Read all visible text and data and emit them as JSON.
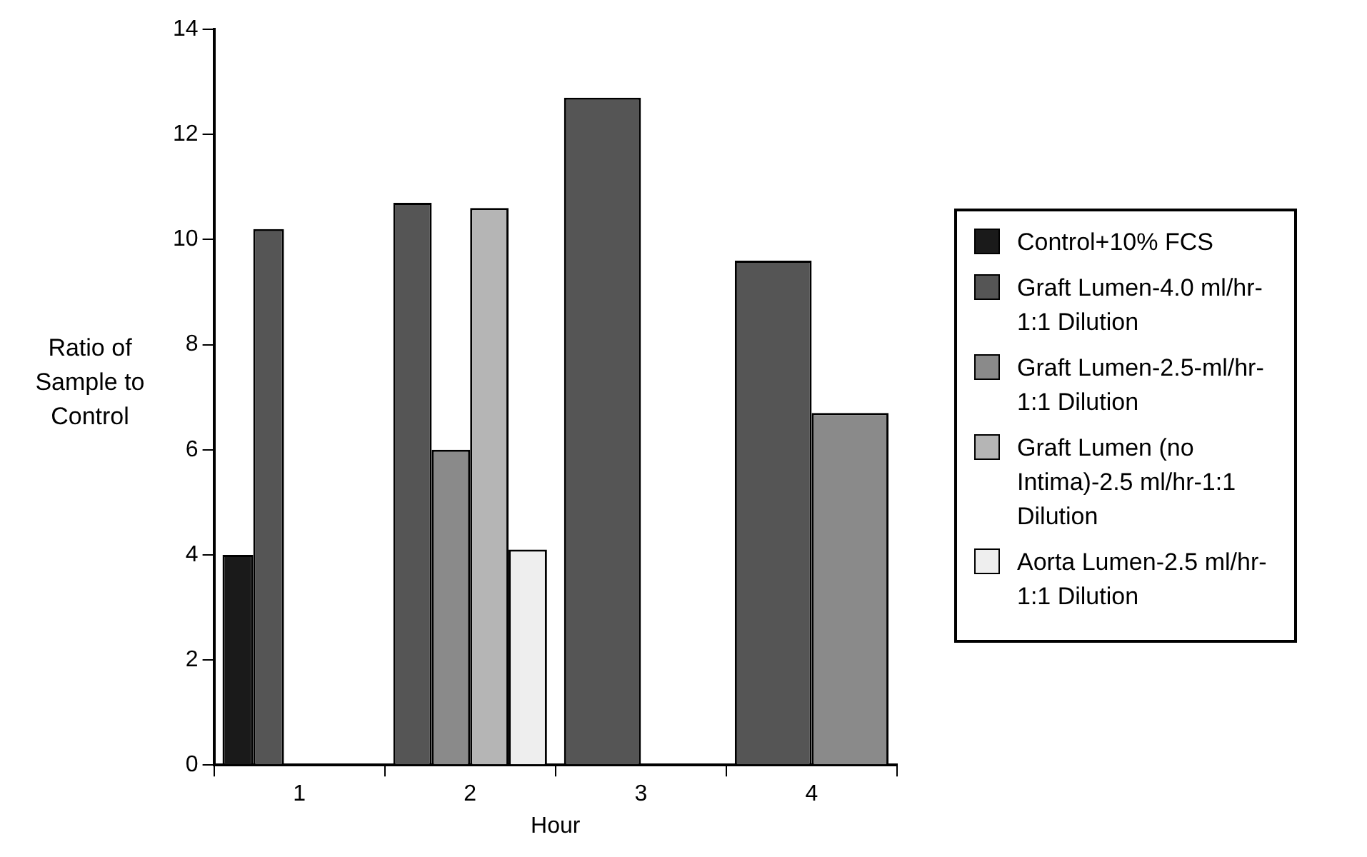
{
  "chart_data": {
    "type": "bar",
    "xlabel": "Hour",
    "ylabel": "Ratio of Sample to Control",
    "categories": [
      "1",
      "2",
      "3",
      "4"
    ],
    "series": [
      {
        "name": "Control+10% FCS",
        "color": "#1a1a1a",
        "values": [
          4.0,
          null,
          null,
          null
        ]
      },
      {
        "name": "Graft Lumen-4.0 ml/hr-1:1 Dilution",
        "color": "#555555",
        "values": [
          10.2,
          10.7,
          12.7,
          9.6
        ]
      },
      {
        "name": "Graft Lumen-2.5-ml/hr-1:1 Dilution",
        "color": "#8a8a8a",
        "values": [
          0,
          6.0,
          0,
          6.7
        ]
      },
      {
        "name": "Graft Lumen (no Intima)-2.5 ml/hr-1:1 Dilution",
        "color": "#b5b5b5",
        "values": [
          0,
          10.6,
          null,
          null
        ]
      },
      {
        "name": "Aorta Lumen-2.5 ml/hr-1:1 Dilution",
        "color": "#eeeeee",
        "values": [
          0,
          4.1,
          null,
          null
        ]
      }
    ],
    "ylim": [
      0,
      14
    ],
    "yticks": [
      0,
      2,
      4,
      6,
      8,
      10,
      12,
      14
    ],
    "grid": false,
    "legend": "right"
  }
}
